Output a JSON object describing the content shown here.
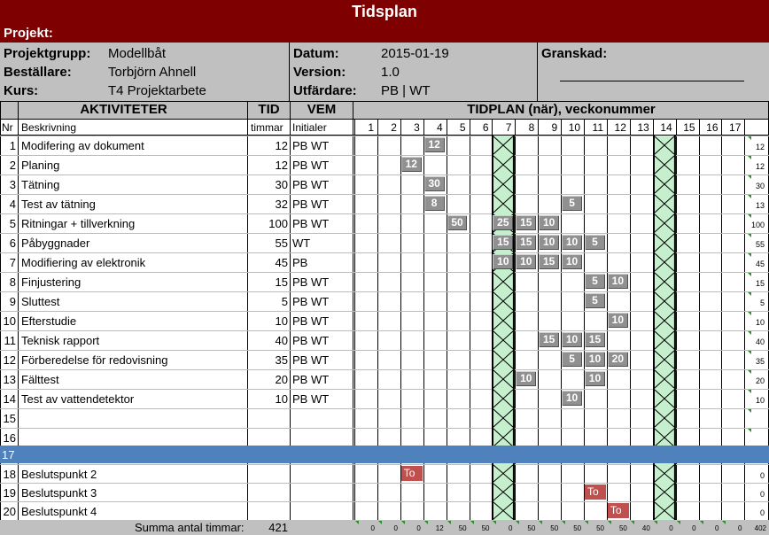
{
  "title": "Tidsplan",
  "projekt_label": "Projekt:",
  "meta": {
    "projektgrupp_label": "Projektgrupp:",
    "projektgrupp": "Modellbåt",
    "bestallare_label": "Beställare:",
    "bestallare": "Torbjörn Ahnell",
    "kurs_label": "Kurs:",
    "kurs": "T4 Projektarbete",
    "datum_label": "Datum:",
    "datum": "2015-01-19",
    "version_label": "Version:",
    "version": "1.0",
    "utfardare_label": "Utfärdare:",
    "utfardare": "PB | WT",
    "granskad_label": "Granskad:"
  },
  "headers": {
    "aktiviteter": "AKTIVITETER",
    "tid": "TID",
    "vem": "VEM",
    "tidplan": "TIDPLAN (när), veckonummer",
    "nr": "Nr",
    "beskrivning": "Beskrivning",
    "timmar": "timmar",
    "initialer": "Initialer"
  },
  "weeks": [
    "1",
    "2",
    "3",
    "4",
    "5",
    "6",
    "7",
    "8",
    "9",
    "10",
    "11",
    "12",
    "13",
    "14",
    "15",
    "16",
    "17"
  ],
  "rows": [
    {
      "nr": "1",
      "desc": "Modifering av dokument",
      "tid": "12",
      "vem": "PB WT",
      "total": "12",
      "blocks": [
        [
          4,
          "12"
        ]
      ]
    },
    {
      "nr": "2",
      "desc": "Planing",
      "tid": "12",
      "vem": "PB WT",
      "total": "12",
      "blocks": [
        [
          3,
          "12"
        ]
      ]
    },
    {
      "nr": "3",
      "desc": "Tätning",
      "tid": "30",
      "vem": "PB WT",
      "total": "30",
      "blocks": [
        [
          4,
          "30"
        ]
      ]
    },
    {
      "nr": "4",
      "desc": "Test av tätning",
      "tid": "32",
      "vem": "PB WT",
      "total": "13",
      "blocks": [
        [
          4,
          "8"
        ],
        [
          10,
          "5"
        ]
      ]
    },
    {
      "nr": "5",
      "desc": "Ritningar + tillverkning",
      "tid": "100",
      "vem": "PB WT",
      "total": "100",
      "blocks": [
        [
          5,
          "50"
        ],
        [
          7,
          "25"
        ],
        [
          8,
          "15"
        ],
        [
          9,
          "10"
        ]
      ]
    },
    {
      "nr": "6",
      "desc": "Påbyggnader",
      "tid": "55",
      "vem": "WT",
      "total": "55",
      "blocks": [
        [
          7,
          "15"
        ],
        [
          8,
          "15"
        ],
        [
          9,
          "10"
        ],
        [
          10,
          "10"
        ],
        [
          11,
          "5"
        ]
      ]
    },
    {
      "nr": "7",
      "desc": "Modifiering av elektronik",
      "tid": "45",
      "vem": "PB",
      "total": "45",
      "blocks": [
        [
          7,
          "10"
        ],
        [
          8,
          "10"
        ],
        [
          9,
          "15"
        ],
        [
          10,
          "10"
        ]
      ]
    },
    {
      "nr": "8",
      "desc": "Finjustering",
      "tid": "15",
      "vem": "PB WT",
      "total": "15",
      "blocks": [
        [
          11,
          "5"
        ],
        [
          12,
          "10"
        ]
      ]
    },
    {
      "nr": "9",
      "desc": "Sluttest",
      "tid": "5",
      "vem": "PB WT",
      "total": "5",
      "blocks": [
        [
          11,
          "5"
        ]
      ]
    },
    {
      "nr": "10",
      "desc": "Efterstudie",
      "tid": "10",
      "vem": "PB WT",
      "total": "10",
      "blocks": [
        [
          12,
          "10"
        ]
      ]
    },
    {
      "nr": "11",
      "desc": "Teknisk rapport",
      "tid": "40",
      "vem": "PB WT",
      "total": "40",
      "blocks": [
        [
          9,
          "15"
        ],
        [
          10,
          "10"
        ],
        [
          11,
          "15"
        ]
      ]
    },
    {
      "nr": "12",
      "desc": "Förberedelse för redovisning",
      "tid": "35",
      "vem": "PB WT",
      "total": "35",
      "blocks": [
        [
          10,
          "5"
        ],
        [
          11,
          "10"
        ],
        [
          12,
          "20"
        ]
      ]
    },
    {
      "nr": "13",
      "desc": "Fälttest",
      "tid": "20",
      "vem": "PB WT",
      "total": "20",
      "blocks": [
        [
          8,
          "10"
        ],
        [
          11,
          "10"
        ]
      ]
    },
    {
      "nr": "14",
      "desc": "Test av vattendetektor",
      "tid": "10",
      "vem": "PB WT",
      "total": "10",
      "blocks": [
        [
          10,
          "10"
        ]
      ]
    },
    {
      "nr": "15",
      "desc": "",
      "tid": "",
      "vem": "",
      "total": "",
      "blocks": []
    },
    {
      "nr": "16",
      "desc": "",
      "tid": "",
      "vem": "",
      "total": "",
      "blocks": []
    }
  ],
  "milestones": [
    {
      "nr": "18",
      "desc": "Beslutspunkt 2",
      "total": "0",
      "week": 3,
      "label": "To"
    },
    {
      "nr": "19",
      "desc": "Beslutspunkt 3",
      "total": "0",
      "week": 11,
      "label": "To"
    },
    {
      "nr": "20",
      "desc": "Beslutspunkt 4",
      "total": "0",
      "week": 12,
      "label": "To"
    }
  ],
  "summa_label": "Summa antal timmar:",
  "summa_value": "421",
  "week_sums": [
    "0",
    "0",
    "0",
    "12",
    "50",
    "50",
    "0",
    "50",
    "50",
    "50",
    "50",
    "50",
    "40",
    "0",
    "0",
    "0",
    "0"
  ],
  "grand_total": "402",
  "colors": {
    "title_bg": "#7f0000",
    "header_gray": "#c0c0c0",
    "divider_blue": "#4f81bd",
    "break_green": "#c6efce",
    "block_gray": "#909090",
    "milestone_red": "#c0504d"
  }
}
